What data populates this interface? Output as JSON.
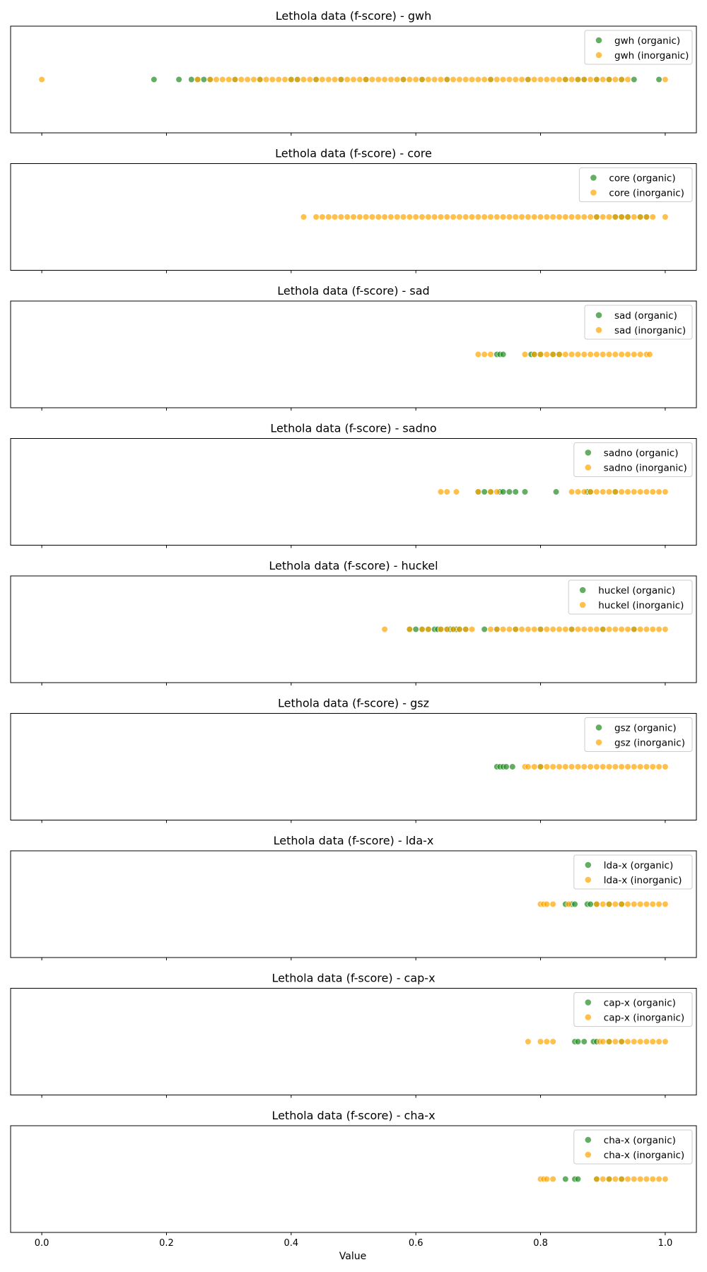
{
  "chart_data": {
    "type": "scatter",
    "xlabel": "Value",
    "xlim": [
      -0.05,
      1.05
    ],
    "xticks": [
      "0.0",
      "0.2",
      "0.4",
      "0.6",
      "0.8",
      "1.0"
    ],
    "xtick_values": [
      0.0,
      0.2,
      0.4,
      0.6,
      0.8,
      1.0
    ],
    "colors": {
      "organic": "#228B22",
      "inorganic": "#FFA500"
    },
    "legend_position": "upper right",
    "panels": [
      {
        "title": "Lethola data (f-score) - gwh",
        "series": [
          {
            "name": "gwh (organic)",
            "group": "organic",
            "x": [
              0.18,
              0.22,
              0.24,
              0.25,
              0.26,
              0.27,
              0.31,
              0.35,
              0.4,
              0.41,
              0.44,
              0.48,
              0.52,
              0.58,
              0.61,
              0.65,
              0.72,
              0.78,
              0.84,
              0.86,
              0.87,
              0.89,
              0.91,
              0.93,
              0.95,
              0.99
            ]
          },
          {
            "name": "gwh (inorganic)",
            "group": "inorganic",
            "x": [
              0.0,
              0.25,
              0.27,
              0.28,
              0.29,
              0.3,
              0.31,
              0.32,
              0.33,
              0.34,
              0.35,
              0.36,
              0.37,
              0.38,
              0.39,
              0.4,
              0.41,
              0.42,
              0.43,
              0.44,
              0.45,
              0.46,
              0.47,
              0.48,
              0.49,
              0.5,
              0.51,
              0.52,
              0.53,
              0.54,
              0.55,
              0.56,
              0.57,
              0.58,
              0.59,
              0.6,
              0.61,
              0.62,
              0.63,
              0.64,
              0.65,
              0.66,
              0.67,
              0.68,
              0.69,
              0.7,
              0.71,
              0.72,
              0.73,
              0.74,
              0.75,
              0.76,
              0.77,
              0.78,
              0.79,
              0.8,
              0.81,
              0.82,
              0.83,
              0.84,
              0.85,
              0.86,
              0.87,
              0.88,
              0.89,
              0.9,
              0.91,
              0.92,
              0.93,
              0.94,
              1.0
            ]
          }
        ]
      },
      {
        "title": "Lethola data (f-score) - core",
        "series": [
          {
            "name": "core (organic)",
            "group": "organic",
            "x": [
              0.89,
              0.92,
              0.93,
              0.94,
              0.96,
              0.97
            ]
          },
          {
            "name": "core (inorganic)",
            "group": "inorganic",
            "x": [
              0.42,
              0.44,
              0.45,
              0.46,
              0.47,
              0.48,
              0.49,
              0.5,
              0.51,
              0.52,
              0.53,
              0.54,
              0.55,
              0.56,
              0.57,
              0.58,
              0.59,
              0.6,
              0.61,
              0.62,
              0.63,
              0.64,
              0.65,
              0.66,
              0.67,
              0.68,
              0.69,
              0.7,
              0.71,
              0.72,
              0.73,
              0.74,
              0.75,
              0.76,
              0.77,
              0.78,
              0.79,
              0.8,
              0.81,
              0.82,
              0.83,
              0.84,
              0.85,
              0.86,
              0.87,
              0.88,
              0.89,
              0.9,
              0.91,
              0.92,
              0.93,
              0.94,
              0.95,
              0.96,
              0.97,
              0.98,
              1.0
            ]
          }
        ]
      },
      {
        "title": "Lethola data (f-score) - sad",
        "series": [
          {
            "name": "sad (organic)",
            "group": "organic",
            "x": [
              0.73,
              0.735,
              0.74,
              0.785,
              0.79,
              0.8,
              0.82,
              0.83
            ]
          },
          {
            "name": "sad (inorganic)",
            "group": "inorganic",
            "x": [
              0.7,
              0.71,
              0.72,
              0.775,
              0.79,
              0.8,
              0.81,
              0.82,
              0.83,
              0.84,
              0.85,
              0.86,
              0.87,
              0.88,
              0.89,
              0.9,
              0.91,
              0.92,
              0.93,
              0.94,
              0.95,
              0.96,
              0.97,
              0.975
            ]
          }
        ]
      },
      {
        "title": "Lethola data (f-score) - sadno",
        "series": [
          {
            "name": "sadno (organic)",
            "group": "organic",
            "x": [
              0.7,
              0.71,
              0.72,
              0.735,
              0.74,
              0.75,
              0.76,
              0.775,
              0.825,
              0.875,
              0.88,
              0.92
            ]
          },
          {
            "name": "sadno (inorganic)",
            "group": "inorganic",
            "x": [
              0.64,
              0.65,
              0.665,
              0.7,
              0.72,
              0.73,
              0.85,
              0.86,
              0.87,
              0.88,
              0.89,
              0.9,
              0.91,
              0.92,
              0.93,
              0.94,
              0.95,
              0.96,
              0.97,
              0.98,
              0.99,
              1.0
            ]
          }
        ]
      },
      {
        "title": "Lethola data (f-score) - huckel",
        "series": [
          {
            "name": "huckel (organic)",
            "group": "organic",
            "x": [
              0.59,
              0.6,
              0.61,
              0.62,
              0.63,
              0.635,
              0.64,
              0.65,
              0.655,
              0.66,
              0.665,
              0.67,
              0.68,
              0.71,
              0.73,
              0.76,
              0.8,
              0.85,
              0.9,
              0.95
            ]
          },
          {
            "name": "huckel (inorganic)",
            "group": "inorganic",
            "x": [
              0.55,
              0.59,
              0.61,
              0.62,
              0.64,
              0.65,
              0.66,
              0.67,
              0.68,
              0.69,
              0.72,
              0.73,
              0.74,
              0.75,
              0.76,
              0.77,
              0.78,
              0.79,
              0.8,
              0.81,
              0.82,
              0.83,
              0.84,
              0.85,
              0.86,
              0.87,
              0.88,
              0.89,
              0.9,
              0.91,
              0.92,
              0.93,
              0.94,
              0.95,
              0.96,
              0.97,
              0.98,
              0.99,
              1.0
            ]
          }
        ]
      },
      {
        "title": "Lethola data (f-score) - gsz",
        "series": [
          {
            "name": "gsz (organic)",
            "group": "organic",
            "x": [
              0.73,
              0.735,
              0.74,
              0.745,
              0.755,
              0.8
            ]
          },
          {
            "name": "gsz (inorganic)",
            "group": "inorganic",
            "x": [
              0.775,
              0.78,
              0.79,
              0.8,
              0.81,
              0.82,
              0.83,
              0.84,
              0.85,
              0.86,
              0.87,
              0.88,
              0.89,
              0.9,
              0.91,
              0.92,
              0.93,
              0.94,
              0.95,
              0.96,
              0.97,
              0.98,
              0.99,
              1.0
            ]
          }
        ]
      },
      {
        "title": "Lethola data (f-score) - lda-x",
        "series": [
          {
            "name": "lda-x (organic)",
            "group": "organic",
            "x": [
              0.84,
              0.85,
              0.855,
              0.875,
              0.88,
              0.89,
              0.91,
              0.93
            ]
          },
          {
            "name": "lda-x (inorganic)",
            "group": "inorganic",
            "x": [
              0.8,
              0.805,
              0.81,
              0.82,
              0.845,
              0.89,
              0.9,
              0.91,
              0.92,
              0.93,
              0.94,
              0.95,
              0.96,
              0.97,
              0.98,
              0.99,
              1.0
            ]
          }
        ]
      },
      {
        "title": "Lethola data (f-score) - cap-x",
        "series": [
          {
            "name": "cap-x (organic)",
            "group": "organic",
            "x": [
              0.855,
              0.86,
              0.87,
              0.885,
              0.89,
              0.91,
              0.93
            ]
          },
          {
            "name": "cap-x (inorganic)",
            "group": "inorganic",
            "x": [
              0.78,
              0.8,
              0.81,
              0.82,
              0.895,
              0.9,
              0.91,
              0.92,
              0.93,
              0.94,
              0.95,
              0.96,
              0.97,
              0.98,
              0.99,
              1.0
            ]
          }
        ]
      },
      {
        "title": "Lethola data (f-score) - cha-x",
        "series": [
          {
            "name": "cha-x (organic)",
            "group": "organic",
            "x": [
              0.84,
              0.855,
              0.86,
              0.89,
              0.91,
              0.93
            ]
          },
          {
            "name": "cha-x (inorganic)",
            "group": "inorganic",
            "x": [
              0.8,
              0.805,
              0.81,
              0.82,
              0.89,
              0.9,
              0.91,
              0.92,
              0.93,
              0.94,
              0.95,
              0.96,
              0.97,
              0.98,
              0.99,
              1.0
            ]
          }
        ]
      }
    ]
  }
}
